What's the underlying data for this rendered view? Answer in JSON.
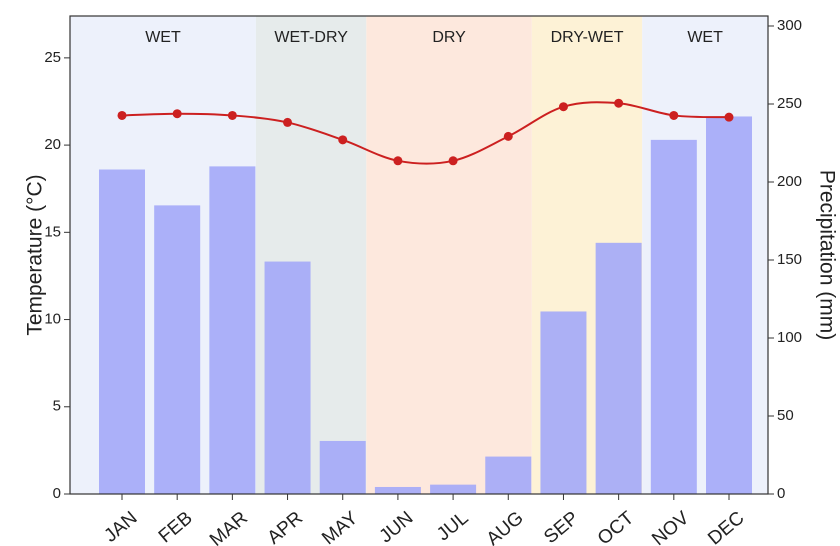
{
  "chart_data": {
    "type": "combo",
    "categories": [
      "JAN",
      "FEB",
      "MAR",
      "APR",
      "MAY",
      "JUN",
      "JUL",
      "AUG",
      "SEP",
      "OCT",
      "NOV",
      "DEC"
    ],
    "y_label": "Temperature (°C)",
    "y2_label": "Precipitation (mm)",
    "ylim": [
      0,
      27.4
    ],
    "yticks": [
      0,
      5,
      10,
      15,
      20,
      25
    ],
    "y2lim": [
      0,
      306.4
    ],
    "y2ticks": [
      0,
      50,
      100,
      150,
      200,
      250,
      300
    ],
    "seasons": [
      {
        "label": "WET",
        "months": [
          "JAN",
          "FEB",
          "MAR"
        ],
        "color": "#edf1fb"
      },
      {
        "label": "WET-DRY",
        "months": [
          "APR",
          "MAY"
        ],
        "color": "#e6ebeb"
      },
      {
        "label": "DRY",
        "months": [
          "JUN",
          "JUL",
          "AUG"
        ],
        "color": "#fde8dd"
      },
      {
        "label": "DRY-WET",
        "months": [
          "SEP",
          "OCT"
        ],
        "color": "#fdf2d6"
      },
      {
        "label": "WET",
        "months": [
          "NOV",
          "DEC"
        ],
        "color": "#edf1fb"
      }
    ],
    "series": [
      {
        "type": "bar",
        "axis": "y2",
        "color": "#a3a8f8",
        "values": [
          208,
          185,
          210,
          149,
          34,
          4.5,
          6,
          24,
          117,
          161,
          227,
          242
        ]
      },
      {
        "type": "line",
        "color": "#cc2020",
        "values": [
          21.7,
          21.8,
          21.7,
          21.3,
          20.3,
          19.1,
          19.1,
          20.5,
          22.2,
          22.4,
          21.7,
          21.6
        ]
      }
    ]
  }
}
